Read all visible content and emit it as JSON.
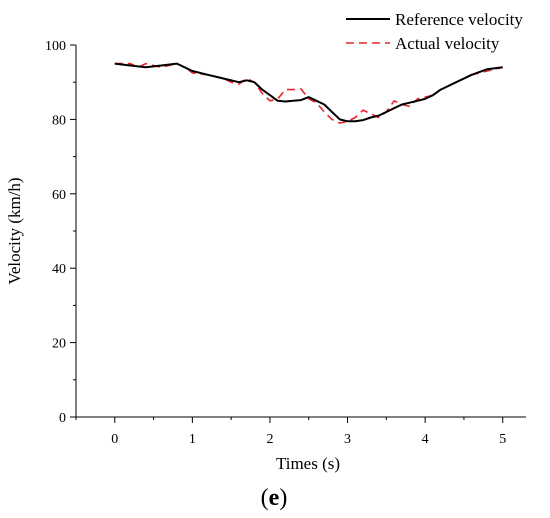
{
  "chart_data": {
    "type": "line",
    "title": "",
    "xlabel": "Times (s)",
    "ylabel": "Velocity (km/h)",
    "xlim": [
      -0.5,
      5.3
    ],
    "ylim": [
      0,
      100
    ],
    "x_ticks": [
      0,
      1,
      2,
      3,
      4,
      5
    ],
    "y_ticks": [
      0,
      20,
      40,
      60,
      80,
      100
    ],
    "grid": false,
    "legend_position": "top-right",
    "panel_label": {
      "open": "(",
      "letter": "e",
      "close": ")"
    },
    "series": [
      {
        "name": "Reference velocity",
        "color": "#000000",
        "dash": "solid",
        "x": [
          0,
          0.2,
          0.4,
          0.6,
          0.8,
          0.9,
          1.0,
          1.2,
          1.4,
          1.6,
          1.7,
          1.8,
          1.9,
          2.0,
          2.1,
          2.2,
          2.3,
          2.4,
          2.5,
          2.6,
          2.7,
          2.8,
          2.9,
          3.0,
          3.1,
          3.2,
          3.3,
          3.4,
          3.5,
          3.6,
          3.7,
          3.8,
          3.9,
          4.0,
          4.1,
          4.2,
          4.4,
          4.6,
          4.8,
          5.0
        ],
        "y": [
          95,
          94.5,
          94,
          94.5,
          95,
          94,
          93,
          92,
          91,
          90,
          90.5,
          90,
          88,
          86.5,
          85,
          84.8,
          85,
          85.2,
          86,
          85,
          84,
          82,
          80,
          79.5,
          79.5,
          79.8,
          80.5,
          81,
          82,
          83,
          84,
          84.5,
          85,
          85.5,
          86.5,
          88,
          90,
          92,
          93.5,
          94
        ]
      },
      {
        "name": "Actual velocity",
        "color": "#e8262a",
        "dash": "dashed",
        "x": [
          0,
          0.2,
          0.3,
          0.4,
          0.5,
          0.6,
          0.8,
          0.9,
          1.0,
          1.2,
          1.4,
          1.5,
          1.6,
          1.7,
          1.8,
          1.9,
          2.0,
          2.1,
          2.2,
          2.3,
          2.4,
          2.5,
          2.6,
          2.7,
          2.8,
          2.9,
          3.0,
          3.1,
          3.2,
          3.3,
          3.4,
          3.5,
          3.6,
          3.7,
          3.8,
          3.9,
          4.0,
          4.1,
          4.2,
          4.4,
          4.6,
          4.8,
          5.0
        ],
        "y": [
          95,
          95,
          94,
          95,
          94.5,
          94,
          95,
          94,
          92.5,
          92,
          91,
          90,
          89.5,
          91,
          90,
          87,
          85,
          85.5,
          88,
          88,
          88.2,
          85.5,
          84.5,
          82,
          80,
          79,
          79.5,
          80.5,
          82.5,
          81.5,
          80.5,
          82,
          85,
          84,
          83.5,
          85.5,
          86,
          86.5,
          88,
          90,
          92,
          93,
          94
        ]
      }
    ]
  }
}
